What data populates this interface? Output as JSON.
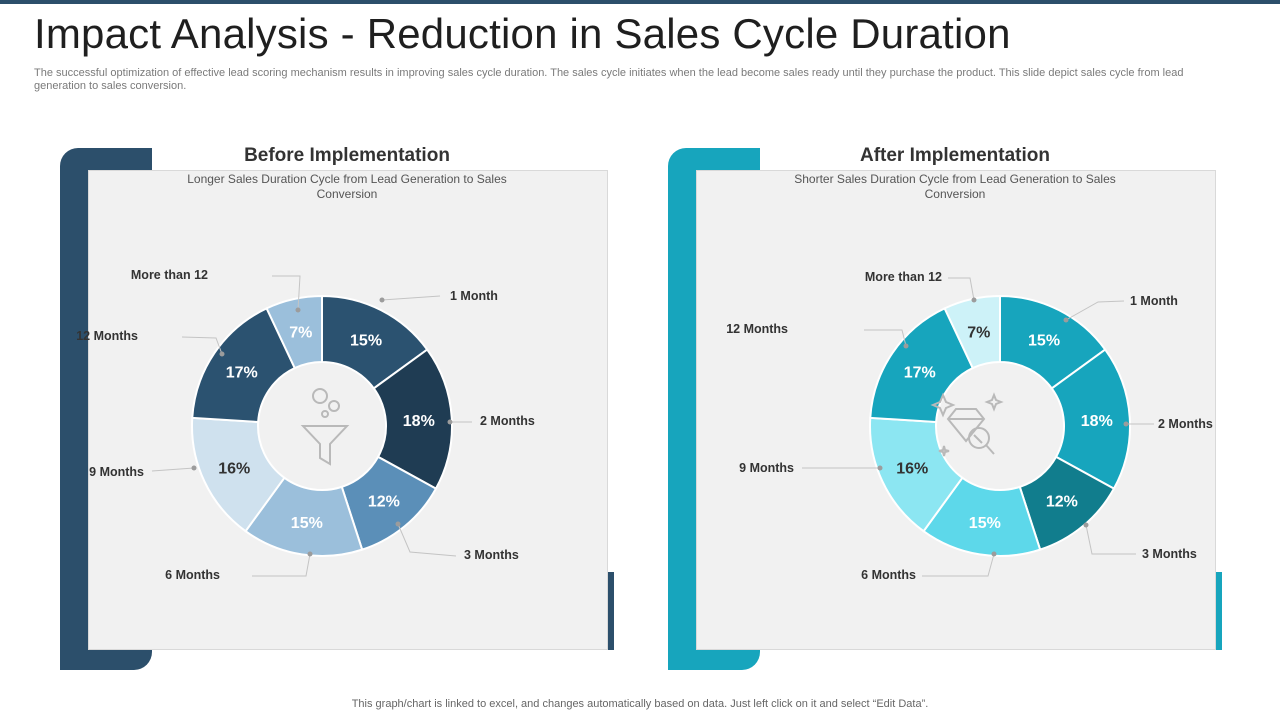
{
  "page": {
    "title": "Impact Analysis - Reduction in Sales Cycle Duration",
    "subtitle": "The successful optimization of effective lead scoring mechanism results in improving sales cycle duration. The sales cycle initiates when the lead become sales ready until they purchase the product. This slide depict sales cycle from lead generation to sales conversion.",
    "footer": "This graph/chart is linked to excel, and changes automatically based on data. Just left click on it and select “Edit Data”."
  },
  "panels": [
    {
      "heading": "Before Implementation",
      "description": "Longer Sales Duration Cycle from Lead Generation to Sales Conversion",
      "accent_color": "#2c4f6b",
      "center_icon": "funnel-icon"
    },
    {
      "heading": "After Implementation",
      "description": "Shorter Sales Duration Cycle from Lead Generation to Sales Conversion",
      "accent_color": "#17a5bd",
      "center_icon": "diamond-search-icon"
    }
  ],
  "chart_data": [
    {
      "type": "pie",
      "donut": true,
      "title": "Before Implementation",
      "categories": [
        "1 Month",
        "2 Months",
        "3 Months",
        "6 Months",
        "9 Months",
        "12 Months",
        "More than 12"
      ],
      "values": [
        15,
        18,
        12,
        15,
        16,
        17,
        7
      ],
      "value_labels": [
        "15%",
        "18%",
        "12%",
        "15%",
        "16%",
        "17%",
        "7%"
      ],
      "colors": [
        "#2b5270",
        "#1f3c53",
        "#5b8fb8",
        "#9bbfdb",
        "#cfe1ee",
        "#2b5270",
        "#9bbfdb"
      ],
      "label_colors": [
        "#ffffff",
        "#ffffff",
        "#ffffff",
        "#ffffff",
        "#333333",
        "#ffffff",
        "#ffffff"
      ]
    },
    {
      "type": "pie",
      "donut": true,
      "title": "After Implementation",
      "categories": [
        "1 Month",
        "2 Months",
        "3 Months",
        "6 Months",
        "9 Months",
        "12 Months",
        "More than 12"
      ],
      "values": [
        15,
        18,
        12,
        15,
        16,
        17,
        7
      ],
      "value_labels": [
        "15%",
        "18%",
        "12%",
        "15%",
        "16%",
        "17%",
        "7%"
      ],
      "colors": [
        "#17a5bd",
        "#17a5bd",
        "#117d8d",
        "#5dd8ea",
        "#8ce6f2",
        "#17a5bd",
        "#cdf2f8"
      ],
      "label_colors": [
        "#ffffff",
        "#ffffff",
        "#ffffff",
        "#ffffff",
        "#333333",
        "#ffffff",
        "#333333"
      ]
    }
  ]
}
